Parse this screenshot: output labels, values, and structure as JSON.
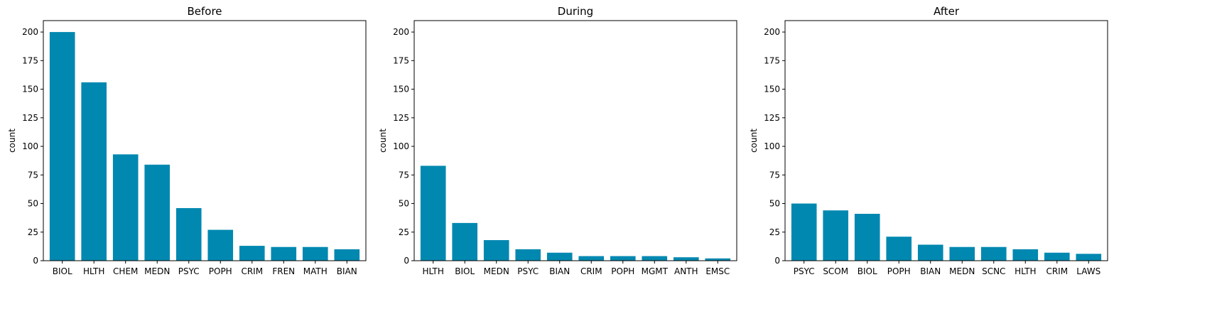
{
  "colors": {
    "bar": "#0088b0",
    "axis": "#000000"
  },
  "chart_data": [
    {
      "type": "bar",
      "title": "Before",
      "ylabel": "count",
      "ylim": [
        0,
        210
      ],
      "yticks": [
        0,
        25,
        50,
        75,
        100,
        125,
        150,
        175,
        200
      ],
      "categories": [
        "BIOL",
        "HLTH",
        "CHEM",
        "MEDN",
        "PSYC",
        "POPH",
        "CRIM",
        "FREN",
        "MATH",
        "BIAN"
      ],
      "values": [
        200,
        156,
        93,
        84,
        46,
        27,
        13,
        12,
        12,
        10
      ]
    },
    {
      "type": "bar",
      "title": "During",
      "ylabel": "count",
      "ylim": [
        0,
        210
      ],
      "yticks": [
        0,
        25,
        50,
        75,
        100,
        125,
        150,
        175,
        200
      ],
      "categories": [
        "HLTH",
        "BIOL",
        "MEDN",
        "PSYC",
        "BIAN",
        "CRIM",
        "POPH",
        "MGMT",
        "ANTH",
        "EMSC"
      ],
      "values": [
        83,
        33,
        18,
        10,
        7,
        4,
        4,
        4,
        3,
        2
      ]
    },
    {
      "type": "bar",
      "title": "After",
      "ylabel": "count",
      "ylim": [
        0,
        210
      ],
      "yticks": [
        0,
        25,
        50,
        75,
        100,
        125,
        150,
        175,
        200
      ],
      "categories": [
        "PSYC",
        "SCOM",
        "BIOL",
        "POPH",
        "BIAN",
        "MEDN",
        "SCNC",
        "HLTH",
        "CRIM",
        "LAWS"
      ],
      "values": [
        50,
        44,
        41,
        21,
        14,
        12,
        12,
        10,
        7,
        6
      ]
    }
  ]
}
